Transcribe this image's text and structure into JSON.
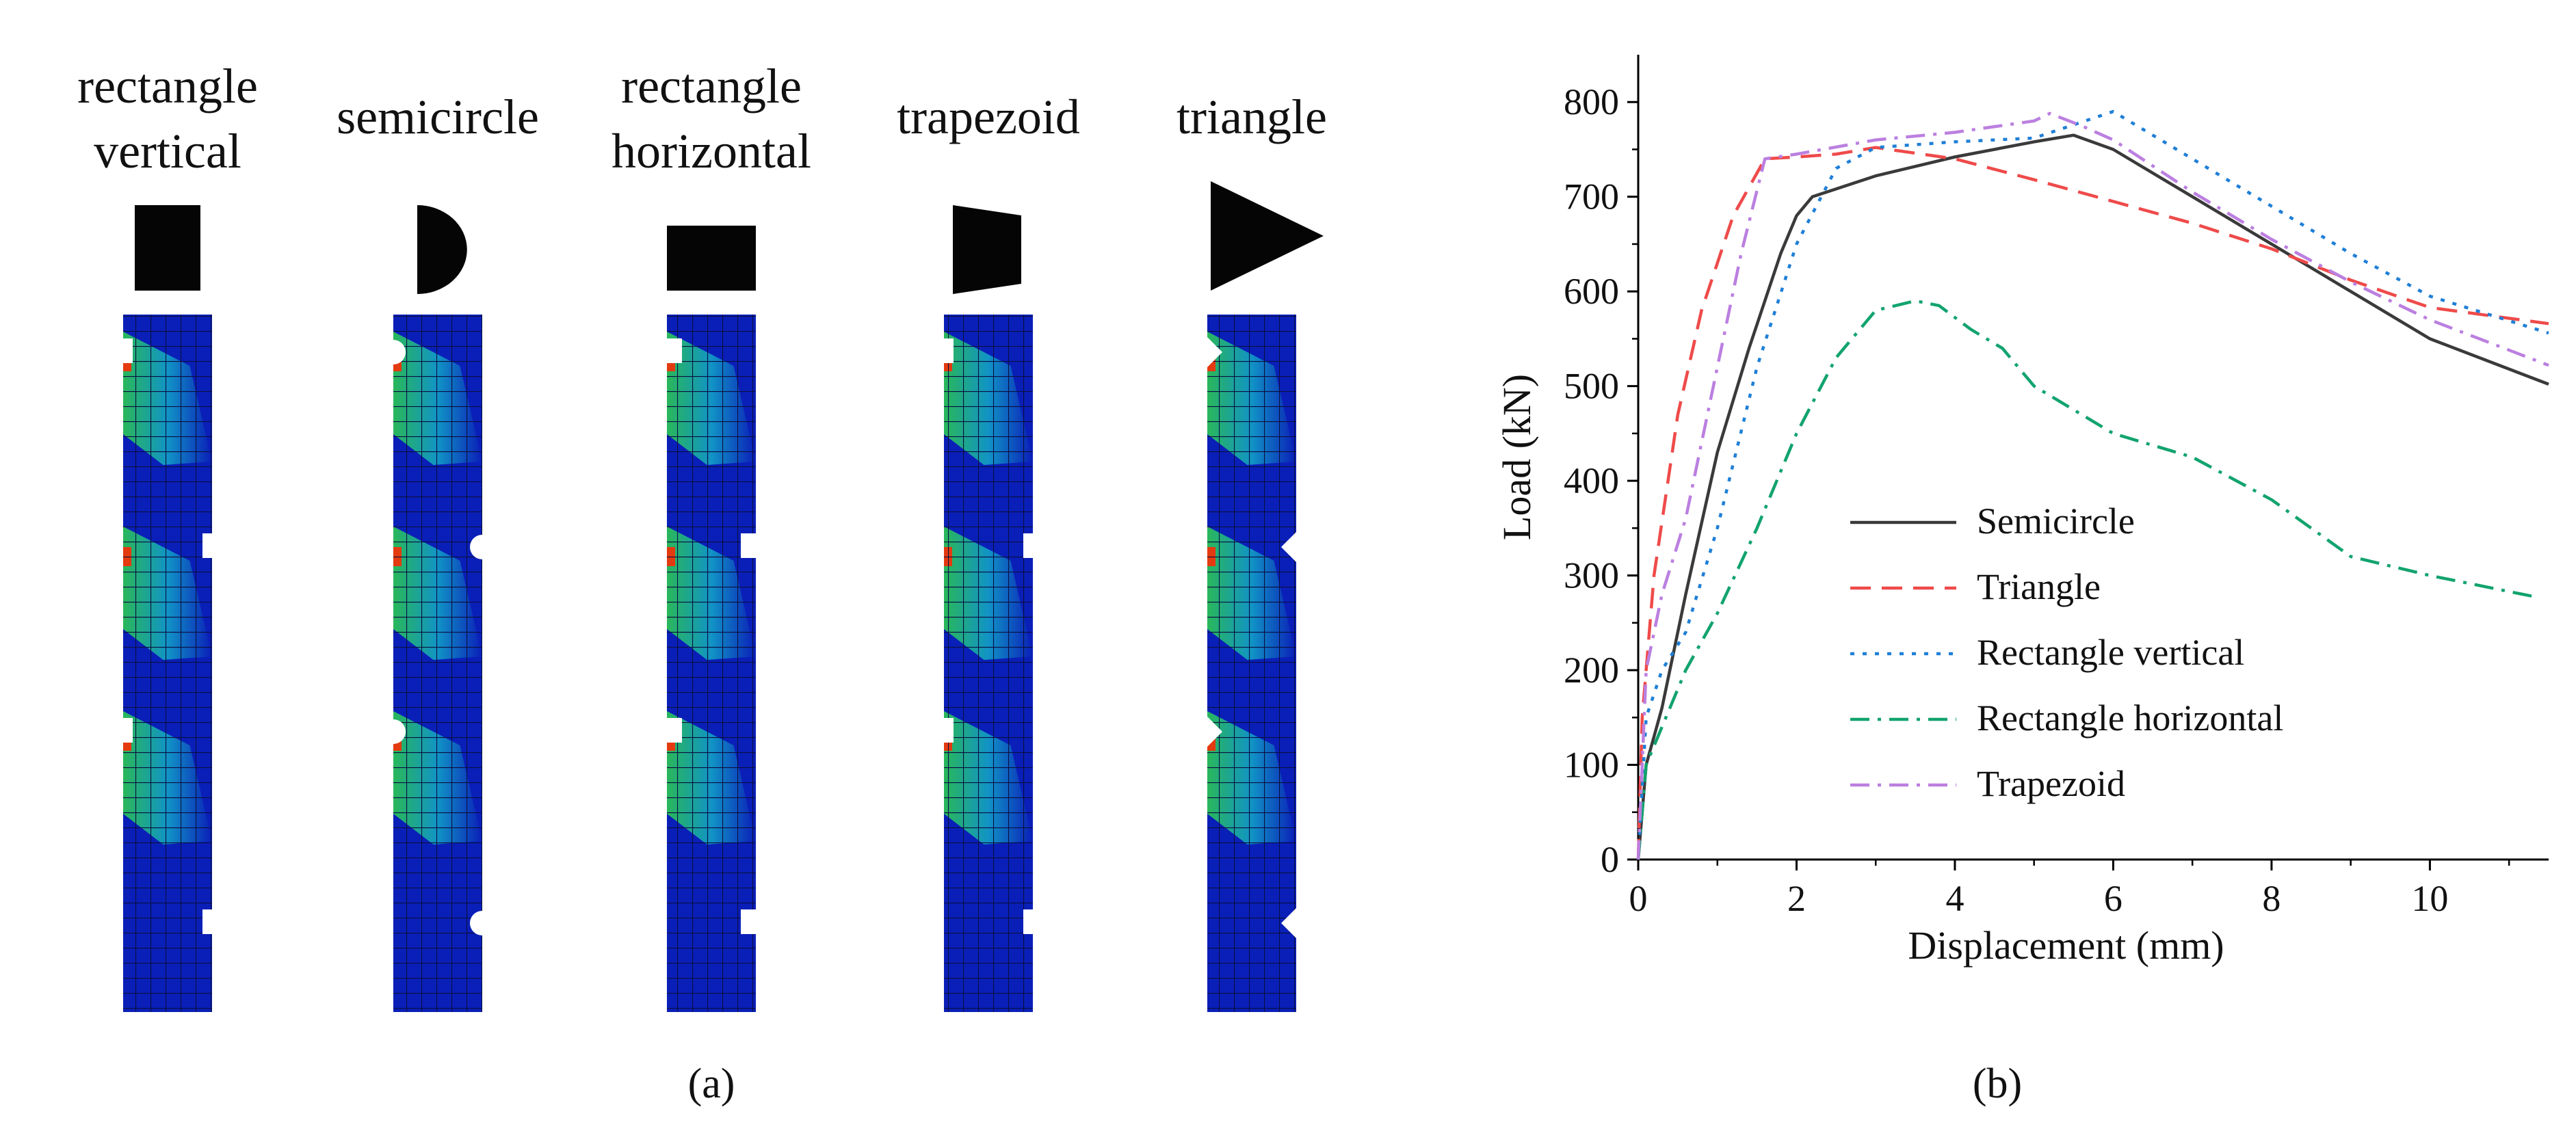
{
  "panel_a": {
    "label": "(a)",
    "specimens": [
      {
        "title_lines": [
          "rectangle",
          "vertical"
        ],
        "notch": "rectangle-vertical"
      },
      {
        "title_lines": [
          "semicircle"
        ],
        "notch": "semicircle"
      },
      {
        "title_lines": [
          "rectangle",
          "horizontal"
        ],
        "notch": "rectangle-horizontal"
      },
      {
        "title_lines": [
          "trapezoid"
        ],
        "notch": "trapezoid"
      },
      {
        "title_lines": [
          "triangle"
        ],
        "notch": "triangle"
      }
    ]
  },
  "panel_b": {
    "label": "(b)"
  },
  "colors": {
    "mesh_low": "#0a1fb8",
    "mesh_mid": "#12a8c8",
    "mesh_high": "#2fd24a",
    "mesh_peak": "#e43a10",
    "Semicircle": "#3a3a3a",
    "Triangle": "#ef4a4a",
    "Rectangle vertical": "#1f7fd6",
    "Rectangle horizontal": "#12a36e",
    "Trapezoid": "#bb7fe0"
  },
  "chart_data": {
    "type": "line",
    "title": "",
    "xlabel": "Displacement (mm)",
    "ylabel": "Load (kN)",
    "xlim": [
      0,
      11.5
    ],
    "ylim": [
      0,
      850
    ],
    "xticks": [
      0,
      2,
      4,
      6,
      8,
      10
    ],
    "yticks": [
      0,
      100,
      200,
      300,
      400,
      500,
      600,
      700,
      800
    ],
    "grid": false,
    "legend_position": "center",
    "series": [
      {
        "name": "Semicircle",
        "style": "solid",
        "x": [
          0,
          0.1,
          0.3,
          0.6,
          1.0,
          1.4,
          1.8,
          2.0,
          2.2,
          3.0,
          4.0,
          5.0,
          5.5,
          6.0,
          7.0,
          8.0,
          9.0,
          10.0,
          11.5
        ],
        "y": [
          0,
          100,
          160,
          280,
          430,
          540,
          640,
          680,
          700,
          722,
          742,
          758,
          765,
          750,
          700,
          650,
          600,
          550,
          502
        ]
      },
      {
        "name": "Triangle",
        "style": "dashed",
        "x": [
          0,
          0.05,
          0.2,
          0.5,
          0.8,
          1.2,
          1.6,
          2.0,
          2.5,
          3.0,
          4.0,
          5.0,
          6.0,
          7.0,
          8.0,
          9.0,
          10.0,
          11.5
        ],
        "y": [
          0,
          150,
          300,
          470,
          580,
          680,
          740,
          742,
          745,
          752,
          740,
          718,
          695,
          672,
          645,
          612,
          583,
          566
        ]
      },
      {
        "name": "Rectangle vertical",
        "style": "dotted",
        "x": [
          0,
          0.1,
          0.3,
          0.6,
          1.0,
          1.5,
          2.0,
          2.5,
          3.0,
          4.0,
          5.0,
          6.0,
          7.0,
          8.0,
          9.0,
          10.0,
          11.5
        ],
        "y": [
          0,
          150,
          200,
          240,
          350,
          520,
          650,
          730,
          752,
          758,
          762,
          790,
          740,
          690,
          640,
          595,
          556
        ]
      },
      {
        "name": "Rectangle horizontal",
        "style": "dashdot",
        "x": [
          0,
          0.1,
          0.3,
          0.6,
          1.0,
          1.5,
          2.0,
          2.5,
          3.0,
          3.5,
          3.8,
          4.2,
          4.6,
          5.0,
          6.0,
          7.0,
          8.0,
          9.0,
          10.0,
          11.3
        ],
        "y": [
          0,
          100,
          140,
          200,
          260,
          350,
          450,
          530,
          580,
          590,
          585,
          560,
          540,
          500,
          450,
          425,
          380,
          320,
          300,
          278
        ]
      },
      {
        "name": "Trapezoid",
        "style": "dashdot",
        "x": [
          0,
          0.1,
          0.3,
          0.6,
          1.0,
          1.3,
          1.6,
          2.0,
          3.0,
          4.0,
          5.0,
          5.2,
          5.6,
          6.0,
          7.0,
          8.0,
          9.0,
          10.0,
          11.5
        ],
        "y": [
          0,
          200,
          280,
          360,
          520,
          640,
          740,
          745,
          760,
          768,
          780,
          788,
          775,
          760,
          705,
          655,
          610,
          570,
          522
        ]
      }
    ]
  }
}
